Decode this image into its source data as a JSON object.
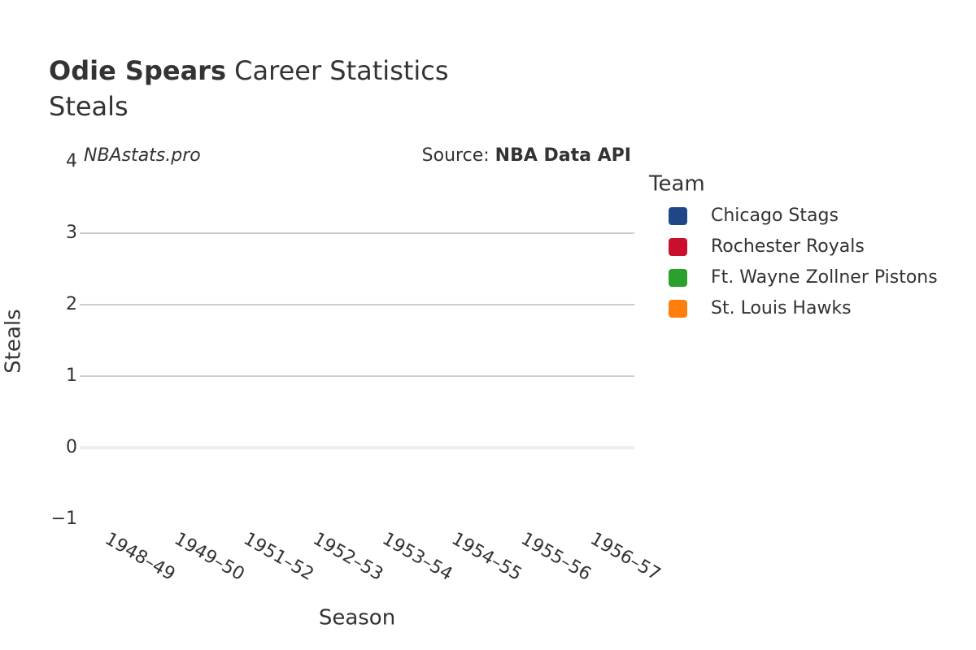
{
  "chart_data": {
    "type": "line",
    "title": {
      "player": "Odie Spears",
      "rest": "Career Statistics"
    },
    "subtitle": "Steals",
    "annotations": {
      "site": "NBAstats.pro",
      "source_label": "Source:",
      "source_name": "NBA Data API"
    },
    "x_label": "Season",
    "y_label": "Steals",
    "categories": [
      "1948–49",
      "1949–50",
      "1951–52",
      "1952–53",
      "1953–54",
      "1954–55",
      "1955–56",
      "1956–57"
    ],
    "legend_title": "Team",
    "series": [
      {
        "name": "Chicago Stags",
        "color": "#1f4788",
        "values": [
          null,
          null,
          null,
          null,
          null,
          null,
          null,
          null
        ]
      },
      {
        "name": "Rochester Royals",
        "color": "#c8102e",
        "values": [
          null,
          null,
          null,
          null,
          null,
          null,
          null,
          null
        ]
      },
      {
        "name": "Ft. Wayne Zollner Pistons",
        "color": "#2ca02c",
        "values": [
          null,
          null,
          null,
          null,
          null,
          null,
          null,
          null
        ]
      },
      {
        "name": "St. Louis Hawks",
        "color": "#ff7f0e",
        "values": [
          null,
          null,
          null,
          null,
          null,
          null,
          null,
          null
        ]
      }
    ],
    "ylim": [
      -1,
      4
    ],
    "yticks": [
      {
        "value": -1,
        "label": "−1"
      },
      0,
      1,
      2,
      3,
      4
    ],
    "grid": true,
    "legend": "right"
  }
}
